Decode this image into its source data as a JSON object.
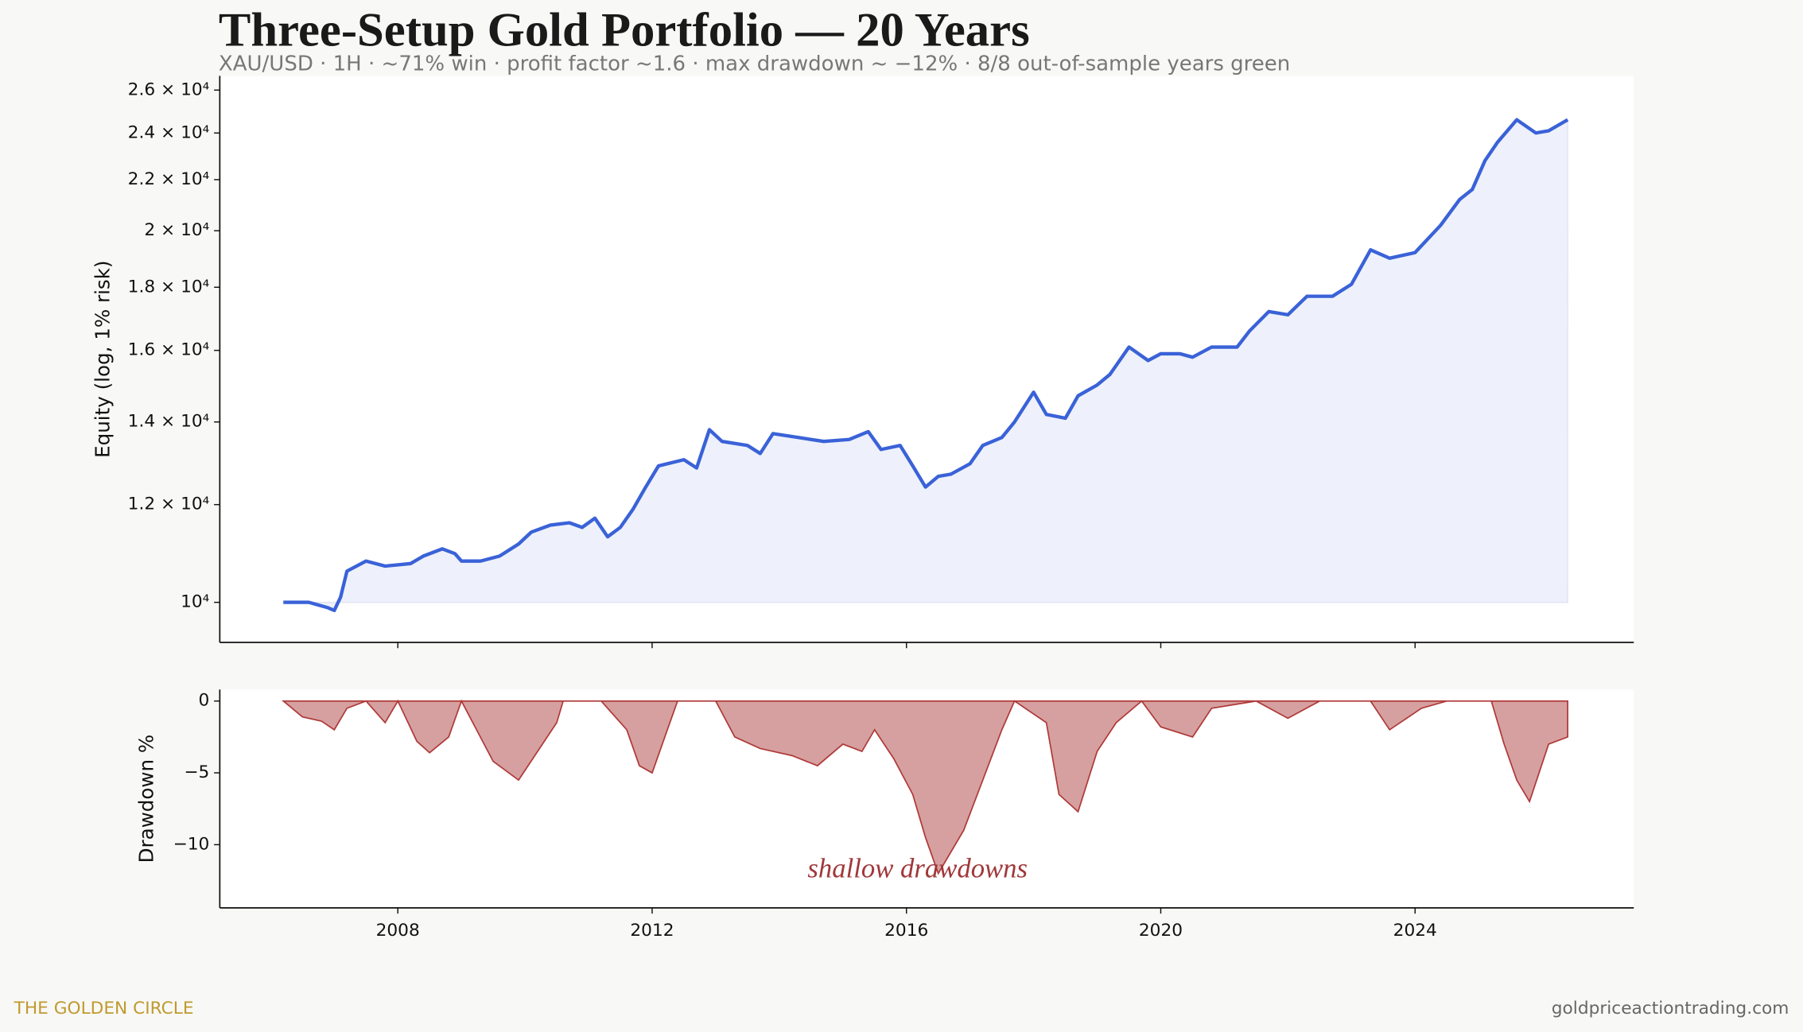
{
  "header": {
    "title": "Three-Setup Gold Portfolio — 20 Years",
    "subtitle": "XAU/USD · 1H · ~71% win · profit factor ~1.6 · max drawdown ~ −12% · 8/8 out-of-sample years green"
  },
  "chart_data": [
    {
      "type": "line",
      "y_label": "Equity (log, 1% risk)",
      "log_scale": true,
      "fill": true,
      "x": [
        2006.2,
        2006.6,
        2006.9,
        2007.0,
        2007.1,
        2007.2,
        2007.5,
        2007.8,
        2008.2,
        2008.4,
        2008.7,
        2008.9,
        2009.0,
        2009.3,
        2009.6,
        2009.9,
        2010.1,
        2010.4,
        2010.7,
        2010.9,
        2011.1,
        2011.3,
        2011.5,
        2011.7,
        2011.9,
        2012.1,
        2012.5,
        2012.7,
        2012.9,
        2013.1,
        2013.5,
        2013.7,
        2013.9,
        2014.3,
        2014.7,
        2015.1,
        2015.4,
        2015.6,
        2015.9,
        2016.1,
        2016.3,
        2016.5,
        2016.7,
        2017.0,
        2017.2,
        2017.5,
        2017.7,
        2018.0,
        2018.2,
        2018.5,
        2018.7,
        2019.0,
        2019.2,
        2019.5,
        2019.8,
        2020.0,
        2020.3,
        2020.5,
        2020.8,
        2021.2,
        2021.4,
        2021.7,
        2022.0,
        2022.3,
        2022.7,
        2023.0,
        2023.3,
        2023.6,
        2024.0,
        2024.4,
        2024.7,
        2024.9,
        2025.1,
        2025.3,
        2025.6,
        2025.9,
        2026.1,
        2026.4
      ],
      "series": [
        {
          "name": "Equity",
          "color": "#3a62d8",
          "values": [
            10000,
            10000,
            9900,
            9850,
            10100,
            10600,
            10800,
            10700,
            10750,
            10900,
            11050,
            10950,
            10800,
            10800,
            10900,
            11150,
            11400,
            11550,
            11600,
            11500,
            11700,
            11300,
            11500,
            11900,
            12400,
            12900,
            13050,
            12850,
            13800,
            13500,
            13400,
            13200,
            13700,
            13600,
            13500,
            13550,
            13750,
            13300,
            13400,
            12900,
            12400,
            12650,
            12700,
            12950,
            13400,
            13600,
            14000,
            14800,
            14200,
            14100,
            14700,
            15000,
            15300,
            16100,
            15700,
            15900,
            15900,
            15800,
            16100,
            16100,
            16600,
            17200,
            17100,
            17700,
            17700,
            18100,
            19300,
            19000,
            19200,
            20200,
            21200,
            21600,
            22800,
            23600,
            24600,
            24000,
            24100,
            24600
          ]
        }
      ],
      "xlim": [
        2005.2,
        2027.44
      ],
      "ylim": [
        9280,
        26700
      ],
      "yticks": [
        {
          "value": 10000,
          "label": "10⁴"
        },
        {
          "value": 12000,
          "label": "1.2 × 10⁴"
        },
        {
          "value": 14000,
          "label": "1.4 × 10⁴"
        },
        {
          "value": 16000,
          "label": "1.6 × 10⁴"
        },
        {
          "value": 18000,
          "label": "1.8 × 10⁴"
        },
        {
          "value": 20000,
          "label": "2 × 10⁴"
        },
        {
          "value": 22000,
          "label": "2.2 × 10⁴"
        },
        {
          "value": 24000,
          "label": "2.4 × 10⁴"
        },
        {
          "value": 26000,
          "label": "2.6 × 10⁴"
        }
      ]
    },
    {
      "type": "area",
      "y_label": "Drawdown %",
      "annotation": "shallow drawdowns",
      "x": [
        2006.2,
        2006.5,
        2006.8,
        2007.0,
        2007.2,
        2007.5,
        2007.8,
        2008.0,
        2008.3,
        2008.5,
        2008.8,
        2009.0,
        2009.5,
        2009.9,
        2010.2,
        2010.5,
        2010.6,
        2011.2,
        2011.6,
        2011.8,
        2012.0,
        2012.2,
        2012.4,
        2013.0,
        2013.3,
        2013.7,
        2014.2,
        2014.6,
        2015.0,
        2015.3,
        2015.5,
        2015.8,
        2016.1,
        2016.3,
        2016.5,
        2016.7,
        2016.9,
        2017.2,
        2017.5,
        2017.7,
        2018.2,
        2018.4,
        2018.7,
        2019.0,
        2019.3,
        2019.7,
        2020.0,
        2020.5,
        2020.8,
        2021.5,
        2022.0,
        2022.5,
        2023.3,
        2023.6,
        2024.1,
        2024.5,
        2025.2,
        2025.4,
        2025.6,
        2025.8,
        2026.1,
        2026.4
      ],
      "series": [
        {
          "name": "Drawdown",
          "color": "#b03a3a",
          "values": [
            0,
            -1.1,
            -1.4,
            -2.0,
            -0.5,
            0,
            -1.5,
            0,
            -2.8,
            -3.6,
            -2.5,
            0,
            -4.2,
            -5.5,
            -3.5,
            -1.5,
            0,
            0,
            -2,
            -4.5,
            -5,
            -2.5,
            0,
            0,
            -2.5,
            -3.3,
            -3.8,
            -4.5,
            -3,
            -3.5,
            -2,
            -4,
            -6.5,
            -9.5,
            -12,
            -10.5,
            -9,
            -5.5,
            -2,
            0,
            -1.5,
            -6.5,
            -7.7,
            -3.5,
            -1.5,
            0,
            -1.8,
            -2.5,
            -0.5,
            0,
            -1.2,
            0,
            0,
            -2,
            -0.5,
            0,
            0,
            -3,
            -5.5,
            -7,
            -3,
            -2.5
          ]
        }
      ],
      "xlim": [
        2005.2,
        2027.44
      ],
      "ylim": [
        -14.4,
        0.8
      ],
      "xticks": [
        2008,
        2012,
        2016,
        2020,
        2024
      ],
      "yticks": [
        {
          "value": 0,
          "label": "0"
        },
        {
          "value": -5,
          "label": "−5"
        },
        {
          "value": -10,
          "label": "−10"
        }
      ]
    }
  ],
  "footer": {
    "brand": "THE GOLDEN CIRCLE",
    "site": "goldpriceactiontrading.com"
  }
}
